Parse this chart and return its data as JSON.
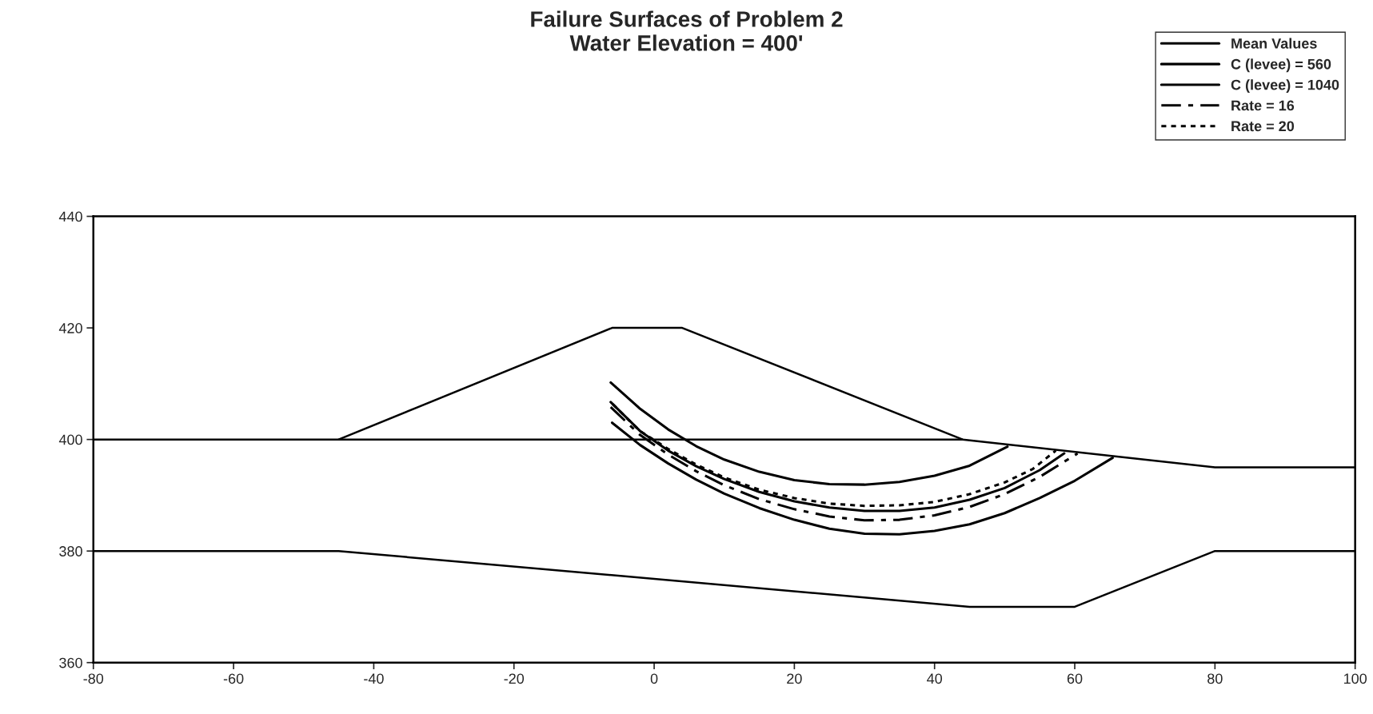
{
  "chart_data": {
    "type": "line",
    "title": "Failure Surfaces of Problem 2\nWater Elevation = 400'",
    "xlim": [
      -80,
      100
    ],
    "xticks": [
      -80,
      -60,
      -40,
      -20,
      0,
      20,
      40,
      60,
      80,
      100
    ],
    "ylim": [
      360,
      440
    ],
    "yticks": [
      360,
      380,
      400,
      420,
      440
    ],
    "grid": false,
    "legend": "top right",
    "marker": "none",
    "series": [
      {
        "name": "Mean Values",
        "color": "#000000",
        "line_style": "solid",
        "x": [
          -6.2,
          -2,
          2,
          6,
          10,
          15,
          20,
          25,
          30,
          35,
          40,
          45,
          50,
          55,
          58.5
        ],
        "values": [
          406.7,
          401.5,
          398,
          395.2,
          392.9,
          390.6,
          388.9,
          387.8,
          387.2,
          387.2,
          387.8,
          389.2,
          391.3,
          394.5,
          397.5
        ]
      },
      {
        "name": "C (levee) = 560",
        "color": "#000000",
        "line_style": "solid",
        "x": [
          -6.2,
          -2,
          2,
          6,
          10,
          15,
          20,
          25,
          30,
          35,
          40,
          45,
          50.4
        ],
        "values": [
          410.2,
          405.5,
          401.8,
          398.8,
          396.4,
          394.2,
          392.7,
          392,
          391.9,
          392.4,
          393.5,
          395.3,
          398.7
        ]
      },
      {
        "name": "C (levee) = 1040",
        "color": "#000000",
        "line_style": "solid",
        "x": [
          -6,
          -2,
          2,
          6,
          10,
          15,
          20,
          25,
          30,
          35,
          40,
          45,
          50,
          55,
          60,
          65.4
        ],
        "values": [
          403,
          399,
          395.7,
          392.8,
          390.3,
          387.7,
          385.6,
          384,
          383.1,
          383,
          383.6,
          384.8,
          386.8,
          389.5,
          392.6,
          396.7
        ]
      },
      {
        "name": "Rate = 16",
        "color": "#000000",
        "line_style": "dashed",
        "x": [
          -6.2,
          -2,
          2,
          6,
          10,
          15,
          20,
          25,
          30,
          35,
          40,
          45,
          50,
          55,
          60.4
        ],
        "values": [
          405.8,
          400.8,
          397.3,
          394.3,
          391.8,
          389.3,
          387.5,
          386.2,
          385.5,
          385.6,
          386.4,
          387.9,
          390.2,
          393.3,
          397.5
        ]
      },
      {
        "name": "Rate = 20",
        "color": "#000000",
        "line_style": "dotted",
        "x": [
          -5.9,
          -2,
          2,
          6,
          10,
          15,
          20,
          25,
          30,
          35,
          40,
          45,
          50,
          54,
          57.3
        ],
        "values": [
          406.3,
          401.5,
          398.3,
          395.5,
          393.2,
          391,
          389.5,
          388.5,
          388.1,
          388.2,
          388.8,
          390.2,
          392.3,
          394.7,
          398
        ]
      },
      {
        "color": "#000000",
        "line_style": "solid",
        "x": [
          -45,
          -6,
          4,
          44,
          80,
          100
        ],
        "values": [
          400,
          420,
          420,
          400,
          395,
          395
        ]
      },
      {
        "color": "#000000",
        "line_style": "solid",
        "x": [
          -80,
          44
        ],
        "values": [
          400,
          400
        ]
      },
      {
        "color": "#000000",
        "line_style": "solid",
        "x": [
          -80,
          -45,
          45,
          60,
          80,
          100
        ],
        "values": [
          380,
          380,
          370,
          370,
          380,
          380
        ]
      }
    ]
  }
}
